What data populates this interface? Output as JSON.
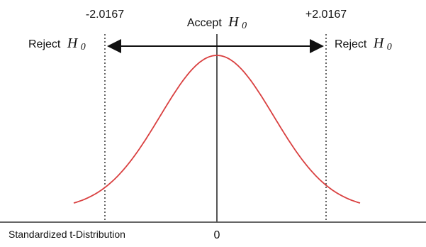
{
  "labels": {
    "left_critical": "-2.0167",
    "right_critical": "+2.0167",
    "accept_prefix": "Accept",
    "reject_prefix": "Reject",
    "hypothesis_symbol": "H",
    "hypothesis_subscript": "0",
    "x_axis_title": "Standardized t-Distribution",
    "center_tick": "0"
  },
  "colors": {
    "curve": "#d94040",
    "lines": "#111111",
    "center_line": "#555555"
  }
}
